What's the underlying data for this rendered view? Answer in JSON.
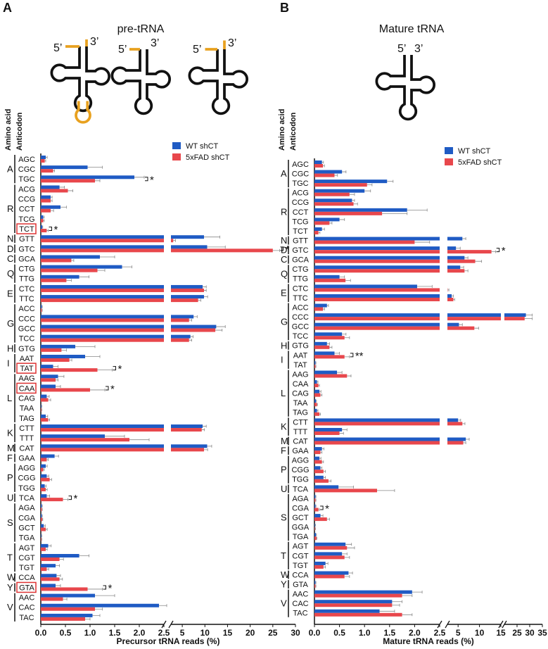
{
  "chart_data": [
    {
      "type": "bar",
      "orientation": "horizontal",
      "panel_label": "A",
      "title": "pre-tRNA",
      "diagram_labels": {
        "five_prime": "5’",
        "three_prime": "3’"
      },
      "group_header": "Amino acid",
      "category_header": "Anticodon",
      "x_label": "Precursor tRNA reads (%)",
      "categories": [
        "AGC",
        "CGC",
        "TGC",
        "ACG",
        "CCG",
        "CCT",
        "TCG",
        "TCT",
        "GTT",
        "GTC",
        "GCA",
        "CTG",
        "TTG",
        "CTC",
        "TTC",
        "ACC",
        "CCC",
        "GCC",
        "TCC",
        "GTG",
        "AAT",
        "TAT",
        "AAG",
        "CAA",
        "CAG",
        "TAA",
        "TAG",
        "CTT",
        "TTT",
        "CAT",
        "GAA",
        "AGG",
        "CGG",
        "TGG",
        "TCA",
        "AGA",
        "CGA",
        "GCT",
        "TGA",
        "AGT",
        "CGT",
        "TGT",
        "CCA",
        "GTA",
        "AAC",
        "CAC",
        "TAC"
      ],
      "groups": [
        {
          "label": "A",
          "count": 3
        },
        {
          "label": "R",
          "count": 5
        },
        {
          "label": "N",
          "count": 1
        },
        {
          "label": "D",
          "count": 1
        },
        {
          "label": "C",
          "count": 1
        },
        {
          "label": "Q",
          "count": 2
        },
        {
          "label": "E",
          "count": 2
        },
        {
          "label": "G",
          "count": 4
        },
        {
          "label": "H",
          "count": 1
        },
        {
          "label": "I",
          "count": 2
        },
        {
          "label": "L",
          "count": 5
        },
        {
          "label": "K",
          "count": 2
        },
        {
          "label": "M",
          "count": 1
        },
        {
          "label": "F",
          "count": 1
        },
        {
          "label": "P",
          "count": 3
        },
        {
          "label": "U",
          "count": 1
        },
        {
          "label": "S",
          "count": 4
        },
        {
          "label": "T",
          "count": 3
        },
        {
          "label": "W",
          "count": 1
        },
        {
          "label": "Y",
          "count": 1
        },
        {
          "label": "V",
          "count": 3
        }
      ],
      "highlighted": [
        "TCT",
        "TAT",
        "CAA",
        "GTA"
      ],
      "series": [
        {
          "name": "WT shCT",
          "color": "#1f5bc4",
          "values": [
            0.1,
            0.95,
            1.9,
            0.38,
            0.2,
            0.4,
            0.05,
            0.03,
            9.8,
            10.5,
            1.2,
            1.65,
            0.78,
            9.5,
            9.8,
            0.02,
            7.5,
            12.5,
            6.8,
            0.7,
            0.9,
            0.25,
            0.35,
            0.3,
            0.12,
            0.01,
            0.1,
            9.5,
            1.3,
            10.5,
            0.28,
            0.1,
            0.12,
            0.08,
            0.12,
            0.02,
            0.02,
            0.06,
            0.01,
            0.15,
            0.78,
            0.3,
            0.32,
            0.3,
            1.1,
            2.4,
            1.05
          ],
          "errors": [
            0.03,
            0.3,
            0.2,
            0.1,
            0.03,
            0.12,
            0.02,
            0.01,
            3.5,
            4,
            0.3,
            0.2,
            0.2,
            0.8,
            0.8,
            0.01,
            0.8,
            2,
            0.6,
            0.4,
            0.3,
            0.1,
            0.12,
            0.1,
            0.05,
            0.01,
            0.04,
            0.8,
            0.4,
            1,
            0.08,
            0.03,
            0.04,
            0.03,
            0.06,
            0.01,
            0.01,
            0.03,
            0.01,
            0.06,
            0.2,
            0.08,
            0.08,
            0.1,
            0.4,
            0.25,
            0.15
          ]
        },
        {
          "name": "5xFAD shCT",
          "color": "#e8474c",
          "values": [
            0.08,
            0.25,
            1.1,
            0.55,
            0.2,
            0.2,
            0.05,
            0.12,
            3,
            25,
            0.62,
            1.15,
            0.52,
            9.8,
            8.5,
            0.02,
            6.5,
            12.3,
            6.5,
            0.42,
            0.58,
            1.15,
            0.3,
            1.0,
            0.15,
            0.01,
            0.15,
            9.3,
            1.8,
            9.8,
            0.12,
            0.05,
            0.18,
            0.1,
            0.45,
            0.02,
            0.03,
            0.1,
            0.01,
            0.1,
            0.38,
            0.12,
            0.38,
            0.95,
            0.45,
            1.1,
            0.9
          ],
          "errors": [
            0.02,
            0.03,
            0.1,
            0.1,
            0.03,
            0.06,
            0.02,
            0.03,
            0.5,
            1.5,
            0.05,
            0.15,
            0.1,
            0.5,
            0.6,
            0.01,
            0.6,
            1.5,
            0.6,
            0.1,
            0.05,
            0.3,
            0.05,
            0.3,
            0.05,
            0.01,
            0.03,
            0.6,
            0.4,
            0.8,
            0.03,
            0.02,
            0.04,
            0.03,
            0.1,
            0.01,
            0.01,
            0.03,
            0.01,
            0.03,
            0.08,
            0.04,
            0.06,
            0.3,
            0.08,
            0.15,
            0.1
          ]
        }
      ],
      "annotations": [
        {
          "category": "TGC",
          "text": "*"
        },
        {
          "category": "TCT",
          "text": "*"
        },
        {
          "category": "GTC",
          "text": "*"
        },
        {
          "category": "TAT",
          "text": "*"
        },
        {
          "category": "CAA",
          "text": "*"
        },
        {
          "category": "TCA",
          "text": "*"
        },
        {
          "category": "GTA",
          "text": "*"
        }
      ],
      "xlim": [
        0,
        30
      ],
      "x_segments": [
        [
          0,
          2.5
        ],
        [
          2.5,
          30
        ]
      ],
      "xticks": [
        {
          "value": 0,
          "label": "0.0"
        },
        0.5,
        {
          "value": 1,
          "label": "1.0"
        },
        1.5,
        {
          "value": 2,
          "label": "2.0"
        },
        2.5,
        5,
        10,
        15,
        20,
        25,
        30
      ],
      "legend": "top-right"
    },
    {
      "type": "bar",
      "orientation": "horizontal",
      "panel_label": "B",
      "title": "Mature tRNA",
      "diagram_labels": {
        "five_prime": "5’",
        "three_prime": "3’"
      },
      "group_header": "Amino acid",
      "category_header": "Anticodon",
      "x_label": "Mature tRNA reads (%)",
      "categories": [
        "AGC",
        "CGC",
        "TGC",
        "ACG",
        "CCG",
        "CCT",
        "TCG",
        "TCT",
        "GTT",
        "GTC",
        "GCA",
        "CTG",
        "TTG",
        "CTC",
        "TTC",
        "ACC",
        "CCC",
        "GCC",
        "TCC",
        "GTG",
        "AAT",
        "TAT",
        "AAG",
        "CAA",
        "CAG",
        "TAA",
        "TAG",
        "CTT",
        "TTT",
        "CAT",
        "GAA",
        "AGG",
        "CGG",
        "TGG",
        "TCA",
        "AGA",
        "CGA",
        "GCT",
        "GGA",
        "TGA",
        "AGT",
        "CGT",
        "TGT",
        "CCA",
        "GTA",
        "AAC",
        "CAC",
        "TAC"
      ],
      "groups": [
        {
          "label": "A",
          "count": 3
        },
        {
          "label": "R",
          "count": 5
        },
        {
          "label": "N",
          "count": 1
        },
        {
          "label": "D",
          "count": 1
        },
        {
          "label": "C",
          "count": 1
        },
        {
          "label": "Q",
          "count": 2
        },
        {
          "label": "E",
          "count": 2
        },
        {
          "label": "G",
          "count": 4
        },
        {
          "label": "H",
          "count": 1
        },
        {
          "label": "I",
          "count": 2
        },
        {
          "label": "L",
          "count": 5
        },
        {
          "label": "K",
          "count": 2
        },
        {
          "label": "M",
          "count": 1
        },
        {
          "label": "F",
          "count": 1
        },
        {
          "label": "P",
          "count": 3
        },
        {
          "label": "U",
          "count": 1
        },
        {
          "label": "S",
          "count": 5
        },
        {
          "label": "T",
          "count": 3
        },
        {
          "label": "W",
          "count": 1
        },
        {
          "label": "Y",
          "count": 1
        },
        {
          "label": "V",
          "count": 3
        }
      ],
      "series": [
        {
          "name": "WT shCT",
          "color": "#1f5bc4",
          "values": [
            0.15,
            0.55,
            1.45,
            1.0,
            0.75,
            1.85,
            0.5,
            0.15,
            6.0,
            4.5,
            6.5,
            5.5,
            0.5,
            2.05,
            3.5,
            0.25,
            28.5,
            5.2,
            0.55,
            0.25,
            0.4,
            0.02,
            0.45,
            0.05,
            0.1,
            0.03,
            0.05,
            5.0,
            0.55,
            6.8,
            0.15,
            0.1,
            0.12,
            0.18,
            0.48,
            0.02,
            0.02,
            0.12,
            0.01,
            0.03,
            0.62,
            0.55,
            0.22,
            0.68,
            0.02,
            1.95,
            1.55,
            1.3
          ],
          "errors": [
            0.03,
            0.08,
            0.12,
            0.12,
            0.05,
            0.4,
            0.1,
            0.05,
            0.8,
            1,
            0.8,
            0.8,
            0.1,
            0.3,
            0.4,
            0.03,
            2.5,
            0.8,
            0.08,
            0.05,
            0.1,
            0.01,
            0.1,
            0.02,
            0.03,
            0.01,
            0.02,
            0.6,
            0.1,
            0.8,
            0.04,
            0.03,
            0.03,
            0.04,
            0.3,
            0.01,
            0.01,
            0.05,
            0.01,
            0.01,
            0.12,
            0.1,
            0.05,
            0.08,
            0.01,
            0.2,
            0.2,
            0.3
          ]
        },
        {
          "name": "5xFAD shCT",
          "color": "#e8474c",
          "values": [
            0.17,
            0.4,
            1.05,
            0.7,
            0.78,
            1.35,
            0.3,
            0.08,
            2.0,
            12.8,
            9.0,
            6.5,
            0.62,
            2.55,
            3.9,
            0.17,
            28,
            8.8,
            0.6,
            0.3,
            0.6,
            0.02,
            0.65,
            0.08,
            0.12,
            0.05,
            0.1,
            6.0,
            0.5,
            6.2,
            0.12,
            0.15,
            0.18,
            0.28,
            1.25,
            0.02,
            0.08,
            0.25,
            0.01,
            0.04,
            0.65,
            0.6,
            0.18,
            0.6,
            0.02,
            1.75,
            1.55,
            1.75
          ],
          "errors": [
            0.03,
            0.06,
            0.1,
            0.1,
            0.08,
            0.5,
            0.05,
            0.03,
            0.3,
            1,
            1.5,
            0.8,
            0.1,
            0.3,
            0.3,
            0.03,
            3,
            1,
            0.1,
            0.05,
            0.1,
            0.01,
            0.08,
            0.02,
            0.03,
            0.01,
            0.02,
            0.6,
            0.08,
            0.6,
            0.03,
            0.03,
            0.04,
            0.05,
            0.35,
            0.01,
            0.02,
            0.05,
            0.01,
            0.01,
            0.15,
            0.1,
            0.04,
            0.1,
            0.01,
            0.2,
            0.15,
            0.2
          ]
        }
      ],
      "annotations": [
        {
          "category": "GTC",
          "text": "*"
        },
        {
          "category": "AAT",
          "text": "**"
        },
        {
          "category": "CGA",
          "text": "*"
        }
      ],
      "xlim": [
        0,
        35
      ],
      "x_segments": [
        [
          0,
          2.5
        ],
        [
          2.5,
          15
        ],
        [
          20,
          35
        ]
      ],
      "xticks": [
        {
          "value": 0,
          "label": "0.0"
        },
        0.5,
        {
          "value": 1,
          "label": "1.0"
        },
        1.5,
        {
          "value": 2,
          "label": "2.0"
        },
        2.5,
        5,
        10,
        15,
        25,
        30,
        35
      ],
      "legend": "top-right"
    }
  ]
}
